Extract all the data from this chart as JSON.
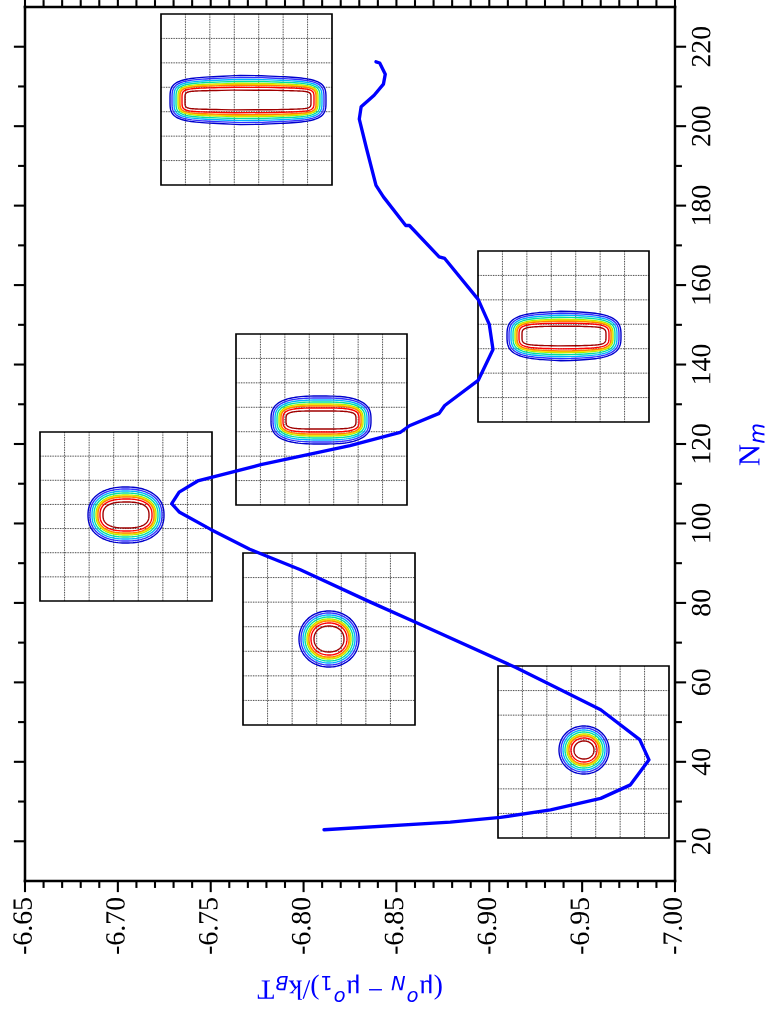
{
  "chart_data": {
    "type": "line",
    "xlabel": "(μ$^{o}$$_{N}$ − μ$^{o}$$_{1}$)/k$_{B}$T",
    "ylabel": "N$_{m}$",
    "xlim": [
      -6.65,
      -7.0
    ],
    "ylim": [
      10,
      230
    ],
    "xticks": [
      {
        "value": -6.65,
        "label": "-6.65"
      },
      {
        "value": -6.7,
        "label": "-6.70"
      },
      {
        "value": -6.75,
        "label": "-6.75"
      },
      {
        "value": -6.8,
        "label": "-6.80"
      },
      {
        "value": -6.85,
        "label": "-6.85"
      },
      {
        "value": -6.9,
        "label": "-6.90"
      },
      {
        "value": -6.95,
        "label": "-6.95"
      },
      {
        "value": -7.0,
        "label": "-7.00"
      },
      {
        "value": -6.66,
        "label": null
      },
      {
        "value": -6.67,
        "label": null
      },
      {
        "value": -6.68,
        "label": null
      },
      {
        "value": -6.69,
        "label": null
      },
      {
        "value": -6.71,
        "label": null
      },
      {
        "value": -6.72,
        "label": null
      },
      {
        "value": -6.73,
        "label": null
      },
      {
        "value": -6.74,
        "label": null
      },
      {
        "value": -6.76,
        "label": null
      },
      {
        "value": -6.77,
        "label": null
      },
      {
        "value": -6.78,
        "label": null
      },
      {
        "value": -6.79,
        "label": null
      },
      {
        "value": -6.81,
        "label": null
      },
      {
        "value": -6.82,
        "label": null
      },
      {
        "value": -6.83,
        "label": null
      },
      {
        "value": -6.84,
        "label": null
      },
      {
        "value": -6.86,
        "label": null
      },
      {
        "value": -6.87,
        "label": null
      },
      {
        "value": -6.88,
        "label": null
      },
      {
        "value": -6.89,
        "label": null
      },
      {
        "value": -6.91,
        "label": null
      },
      {
        "value": -6.92,
        "label": null
      },
      {
        "value": -6.93,
        "label": null
      },
      {
        "value": -6.94,
        "label": null
      },
      {
        "value": -6.96,
        "label": null
      },
      {
        "value": -6.97,
        "label": null
      },
      {
        "value": -6.98,
        "label": null
      },
      {
        "value": -6.99,
        "label": null
      }
    ],
    "yticks": [
      20,
      40,
      60,
      80,
      100,
      120,
      140,
      160,
      180,
      200,
      220,
      {
        "value": 30,
        "label": null
      },
      {
        "value": 50,
        "label": null
      },
      {
        "value": 70,
        "label": null
      },
      {
        "value": 90,
        "label": null
      },
      {
        "value": 110,
        "label": null
      },
      {
        "value": 130,
        "label": null
      },
      {
        "value": 150,
        "label": null
      },
      {
        "value": 170,
        "label": null
      },
      {
        "value": 190,
        "label": null
      },
      {
        "value": 210,
        "label": null
      }
    ],
    "line_style": "solid",
    "series": [
      {
        "color": "#0000ff",
        "x": [
          -6.811,
          -6.879,
          -6.906,
          -6.933,
          -6.96,
          -6.976,
          -6.986,
          -6.981,
          -6.96,
          -6.933,
          -6.914,
          -6.86,
          -6.836,
          -6.798,
          -6.771,
          -6.75,
          -6.733,
          -6.729,
          -6.733,
          -6.743,
          -6.777,
          -6.825,
          -6.852,
          -6.857,
          -6.873,
          -6.876,
          -6.894,
          -6.902,
          -6.9,
          -6.894,
          -6.876,
          -6.873,
          -6.857,
          -6.855,
          -6.843,
          -6.839,
          -6.834,
          -6.83,
          -6.831,
          -6.838,
          -6.843,
          -6.844,
          -6.841,
          -6.839
        ],
        "values": [
          22.9,
          24.8,
          26.0,
          27.9,
          30.8,
          34.2,
          40.5,
          45.6,
          53.1,
          59.4,
          63.8,
          75.2,
          80.2,
          88.4,
          93.5,
          98.5,
          102.9,
          105.0,
          107.9,
          110.7,
          114.8,
          119.6,
          122.9,
          124.6,
          127.7,
          129.7,
          136.0,
          143.8,
          150.1,
          156.4,
          166.7,
          167.1,
          175.0,
          175.0,
          182.2,
          185.1,
          194.2,
          201.8,
          204.9,
          207.8,
          210.6,
          213.1,
          215.9,
          216.2
        ]
      }
    ]
  }
}
